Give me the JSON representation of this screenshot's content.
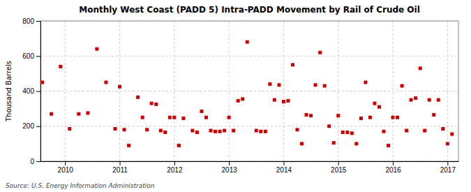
{
  "chart_data": {
    "type": "scatter",
    "title": "Monthly West Coast (PADD 5) Intra-PADD Movement by Rail of Crude Oil",
    "ylabel": "Thousand Barrels",
    "source": "Source: U.S. Energy Information Administration",
    "color": "#cc0000",
    "marker": "square",
    "grid": true,
    "xlim": [
      2009.55,
      2017.2
    ],
    "xticks": [
      2010,
      2011,
      2012,
      2013,
      2014,
      2015,
      2016,
      2017
    ],
    "ylim": [
      0,
      800
    ],
    "yticks": [
      0,
      200,
      400,
      600,
      800
    ],
    "x": [
      2009.583,
      2009.75,
      2009.917,
      2010.083,
      2010.25,
      2010.417,
      2010.583,
      2010.75,
      2010.917,
      2011.0,
      2011.083,
      2011.167,
      2011.333,
      2011.417,
      2011.5,
      2011.583,
      2011.667,
      2011.75,
      2011.833,
      2011.917,
      2012.0,
      2012.083,
      2012.167,
      2012.333,
      2012.417,
      2012.5,
      2012.583,
      2012.667,
      2012.75,
      2012.833,
      2012.917,
      2013.0,
      2013.083,
      2013.167,
      2013.25,
      2013.333,
      2013.5,
      2013.583,
      2013.667,
      2013.75,
      2013.833,
      2013.917,
      2014.0,
      2014.083,
      2014.167,
      2014.25,
      2014.333,
      2014.417,
      2014.5,
      2014.583,
      2014.667,
      2014.75,
      2014.833,
      2014.917,
      2015.0,
      2015.083,
      2015.167,
      2015.25,
      2015.333,
      2015.417,
      2015.5,
      2015.583,
      2015.667,
      2015.75,
      2015.833,
      2015.917,
      2016.0,
      2016.083,
      2016.167,
      2016.25,
      2016.333,
      2016.417,
      2016.5,
      2016.583,
      2016.667,
      2016.75,
      2016.833,
      2016.917,
      2017.0,
      2017.083
    ],
    "values": [
      450,
      270,
      540,
      185,
      270,
      275,
      640,
      450,
      185,
      425,
      180,
      90,
      365,
      250,
      180,
      330,
      325,
      175,
      165,
      250,
      250,
      90,
      245,
      175,
      165,
      285,
      250,
      175,
      170,
      170,
      175,
      250,
      175,
      345,
      355,
      680,
      175,
      170,
      170,
      440,
      350,
      435,
      340,
      345,
      550,
      180,
      100,
      265,
      260,
      435,
      620,
      430,
      200,
      105,
      260,
      165,
      165,
      160,
      100,
      245,
      450,
      250,
      330,
      310,
      170,
      90,
      250,
      250,
      430,
      175,
      350,
      360,
      530,
      175,
      350,
      265,
      350,
      185,
      100,
      155
    ]
  }
}
